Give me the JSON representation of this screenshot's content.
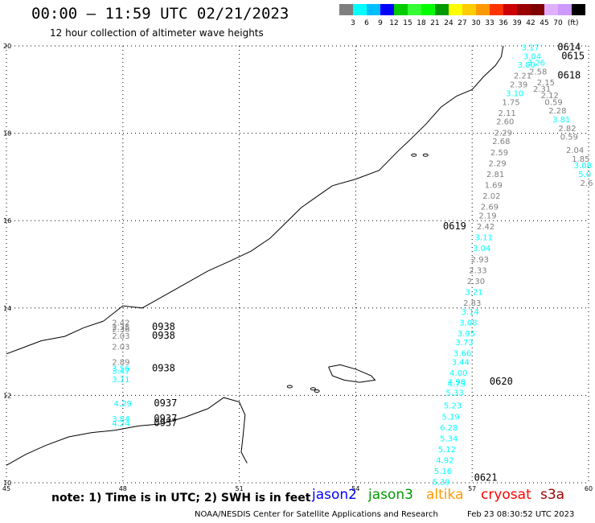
{
  "header": {
    "title": "00:00 — 11:59 UTC 02/21/2023",
    "subtitle": "12 hour collection of altimeter wave heights"
  },
  "scale": {
    "colors": [
      "#7f7f7f",
      "#00ffff",
      "#00bfff",
      "#0000ff",
      "#00cc00",
      "#33ff33",
      "#00ff00",
      "#009900",
      "#ffff00",
      "#ffcc00",
      "#ff9900",
      "#ff3300",
      "#cc0000",
      "#990000",
      "#7f0000",
      "#e0b0ff",
      "#cc99ff",
      "#000000"
    ],
    "labels": [
      "3",
      "6",
      "9",
      "12",
      "15",
      "18",
      "21",
      "24",
      "27",
      "30",
      "33",
      "36",
      "39",
      "42",
      "45",
      "70"
    ],
    "unit": "(ft)"
  },
  "axes": {
    "lon_labels": [
      "45",
      "48",
      "51",
      "54",
      "57",
      "60"
    ],
    "lat_labels": [
      "20",
      "18",
      "16",
      "14",
      "12",
      "10"
    ]
  },
  "legend": {
    "note": "note: 1) Time is in UTC; 2) SWH is in feet",
    "satellites": [
      {
        "name": "jason2",
        "color": "#0000ff"
      },
      {
        "name": "jason3",
        "color": "#009900"
      },
      {
        "name": "altika",
        "color": "#ff9900"
      },
      {
        "name": "cryosat",
        "color": "#ff0000"
      },
      {
        "name": "s3a",
        "color": "#990000"
      }
    ]
  },
  "footer": {
    "credit": "NOAA/NESDIS Center for Satellite Applications and Research",
    "timestamp": "Feb 23 08:30:52 UTC 2023"
  },
  "time_labels": [
    {
      "text": "0614",
      "color": "#009900",
      "lon": 59.2,
      "lat": 19.9
    },
    {
      "text": "0615",
      "color": "#009900",
      "lon": 59.3,
      "lat": 19.7
    },
    {
      "text": "0618",
      "color": "#990000",
      "lon": 59.2,
      "lat": 19.25
    },
    {
      "text": "0619",
      "color": "#990000",
      "lon": 56.25,
      "lat": 15.8
    },
    {
      "text": "0620",
      "color": "#990000",
      "lon": 57.45,
      "lat": 12.25
    },
    {
      "text": "0621",
      "color": "#990000",
      "lon": 57.05,
      "lat": 10.05
    },
    {
      "text": "0938",
      "color": "#ff0000",
      "lon": 48.75,
      "lat": 13.5
    },
    {
      "text": "0938",
      "color": "#ff0000",
      "lon": 48.75,
      "lat": 13.3
    },
    {
      "text": "0938",
      "color": "#ff0000",
      "lon": 48.75,
      "lat": 12.55
    },
    {
      "text": "0937",
      "color": "#ff0000",
      "lon": 48.8,
      "lat": 11.75
    },
    {
      "text": "0937",
      "color": "#ff0000",
      "lon": 48.8,
      "lat": 11.4
    },
    {
      "text": "0937",
      "color": "#ff0000",
      "lon": 48.8,
      "lat": 11.3
    }
  ],
  "wave_heights": [
    {
      "v": "3.17",
      "c": "#00ffff",
      "lon": 58.5,
      "lat": 19.9
    },
    {
      "v": "3.04",
      "c": "#00ffff",
      "lon": 58.55,
      "lat": 19.7
    },
    {
      "v": "3.26",
      "c": "#00ffff",
      "lon": 58.65,
      "lat": 19.55
    },
    {
      "v": "3.00",
      "c": "#00ffff",
      "lon": 58.4,
      "lat": 19.5
    },
    {
      "v": "2.58",
      "c": "#7f7f7f",
      "lon": 58.7,
      "lat": 19.35
    },
    {
      "v": "2.21",
      "c": "#7f7f7f",
      "lon": 58.3,
      "lat": 19.25
    },
    {
      "v": "2.15",
      "c": "#7f7f7f",
      "lon": 58.9,
      "lat": 19.1
    },
    {
      "v": "2.39",
      "c": "#7f7f7f",
      "lon": 58.2,
      "lat": 19.05
    },
    {
      "v": "2.31",
      "c": "#7f7f7f",
      "lon": 58.8,
      "lat": 18.95
    },
    {
      "v": "3.10",
      "c": "#00ffff",
      "lon": 58.1,
      "lat": 18.85
    },
    {
      "v": "2.12",
      "c": "#7f7f7f",
      "lon": 59.0,
      "lat": 18.8
    },
    {
      "v": "1.75",
      "c": "#7f7f7f",
      "lon": 58.0,
      "lat": 18.65
    },
    {
      "v": "0.59",
      "c": "#7f7f7f",
      "lon": 59.1,
      "lat": 18.65
    },
    {
      "v": "2.11",
      "c": "#7f7f7f",
      "lon": 57.9,
      "lat": 18.4
    },
    {
      "v": "2.28",
      "c": "#7f7f7f",
      "lon": 59.2,
      "lat": 18.45
    },
    {
      "v": "3.81",
      "c": "#00ffff",
      "lon": 59.3,
      "lat": 18.25
    },
    {
      "v": "2.60",
      "c": "#7f7f7f",
      "lon": 57.85,
      "lat": 18.2
    },
    {
      "v": "2.82",
      "c": "#7f7f7f",
      "lon": 59.45,
      "lat": 18.05
    },
    {
      "v": "2.29",
      "c": "#7f7f7f",
      "lon": 57.8,
      "lat": 17.95
    },
    {
      "v": "0.59",
      "c": "#7f7f7f",
      "lon": 59.5,
      "lat": 17.85
    },
    {
      "v": "2.68",
      "c": "#7f7f7f",
      "lon": 57.75,
      "lat": 17.75
    },
    {
      "v": "2.59",
      "c": "#7f7f7f",
      "lon": 57.7,
      "lat": 17.5
    },
    {
      "v": "2.04",
      "c": "#7f7f7f",
      "lon": 59.65,
      "lat": 17.55
    },
    {
      "v": "1.85",
      "c": "#7f7f7f",
      "lon": 59.8,
      "lat": 17.35
    },
    {
      "v": "2.29",
      "c": "#7f7f7f",
      "lon": 57.65,
      "lat": 17.25
    },
    {
      "v": "3.08",
      "c": "#00ffff",
      "lon": 59.85,
      "lat": 17.2
    },
    {
      "v": "2.81",
      "c": "#7f7f7f",
      "lon": 57.6,
      "lat": 17.0
    },
    {
      "v": "5.0",
      "c": "#00ffff",
      "lon": 59.9,
      "lat": 17.0
    },
    {
      "v": "1.69",
      "c": "#7f7f7f",
      "lon": 57.55,
      "lat": 16.75
    },
    {
      "v": "2.6",
      "c": "#7f7f7f",
      "lon": 59.95,
      "lat": 16.8
    },
    {
      "v": "2.02",
      "c": "#7f7f7f",
      "lon": 57.5,
      "lat": 16.5
    },
    {
      "v": "2.69",
      "c": "#7f7f7f",
      "lon": 57.45,
      "lat": 16.25
    },
    {
      "v": "2.19",
      "c": "#7f7f7f",
      "lon": 57.4,
      "lat": 16.05
    },
    {
      "v": "2.42",
      "c": "#7f7f7f",
      "lon": 57.35,
      "lat": 15.8
    },
    {
      "v": "3.11",
      "c": "#00ffff",
      "lon": 57.3,
      "lat": 15.55
    },
    {
      "v": "3.04",
      "c": "#00ffff",
      "lon": 57.25,
      "lat": 15.3
    },
    {
      "v": "2.93",
      "c": "#7f7f7f",
      "lon": 57.2,
      "lat": 15.05
    },
    {
      "v": "2.33",
      "c": "#7f7f7f",
      "lon": 57.15,
      "lat": 14.8
    },
    {
      "v": "2.30",
      "c": "#7f7f7f",
      "lon": 57.1,
      "lat": 14.55
    },
    {
      "v": "3.21",
      "c": "#00ffff",
      "lon": 57.05,
      "lat": 14.3
    },
    {
      "v": "2.83",
      "c": "#7f7f7f",
      "lon": 57.0,
      "lat": 14.05
    },
    {
      "v": "3.14",
      "c": "#00ffff",
      "lon": 56.95,
      "lat": 13.85
    },
    {
      "v": "3.08",
      "c": "#00ffff",
      "lon": 56.9,
      "lat": 13.6
    },
    {
      "v": "3.95",
      "c": "#00ffff",
      "lon": 56.85,
      "lat": 13.35
    },
    {
      "v": "3.73",
      "c": "#00ffff",
      "lon": 56.8,
      "lat": 13.15
    },
    {
      "v": "3.66",
      "c": "#00ffff",
      "lon": 56.75,
      "lat": 12.9
    },
    {
      "v": "3.44",
      "c": "#00ffff",
      "lon": 56.7,
      "lat": 12.7
    },
    {
      "v": "4.00",
      "c": "#00ffff",
      "lon": 56.65,
      "lat": 12.45
    },
    {
      "v": "4.98",
      "c": "#00ffff",
      "lon": 56.6,
      "lat": 12.25
    },
    {
      "v": "4.73",
      "c": "#00ffff",
      "lon": 56.6,
      "lat": 12.2
    },
    {
      "v": "5.33",
      "c": "#00ffff",
      "lon": 56.55,
      "lat": 12.0
    },
    {
      "v": "5.23",
      "c": "#00ffff",
      "lon": 56.5,
      "lat": 11.7
    },
    {
      "v": "5.19",
      "c": "#00ffff",
      "lon": 56.45,
      "lat": 11.45
    },
    {
      "v": "6.28",
      "c": "#00ffff",
      "lon": 56.4,
      "lat": 11.2
    },
    {
      "v": "5.34",
      "c": "#00ffff",
      "lon": 56.4,
      "lat": 10.95
    },
    {
      "v": "5.12",
      "c": "#00ffff",
      "lon": 56.35,
      "lat": 10.7
    },
    {
      "v": "4.92",
      "c": "#00ffff",
      "lon": 56.3,
      "lat": 10.45
    },
    {
      "v": "5.16",
      "c": "#00ffff",
      "lon": 56.25,
      "lat": 10.2
    },
    {
      "v": "5.39",
      "c": "#00ffff",
      "lon": 56.2,
      "lat": 9.95
    },
    {
      "v": "2.42",
      "c": "#7f7f7f",
      "lon": 47.95,
      "lat": 13.6
    },
    {
      "v": "2.35",
      "c": "#7f7f7f",
      "lon": 47.95,
      "lat": 13.5
    },
    {
      "v": "2.36",
      "c": "#7f7f7f",
      "lon": 47.95,
      "lat": 13.45
    },
    {
      "v": "2.03",
      "c": "#7f7f7f",
      "lon": 47.95,
      "lat": 13.3
    },
    {
      "v": "2.03",
      "c": "#7f7f7f",
      "lon": 47.95,
      "lat": 13.05
    },
    {
      "v": "2.89",
      "c": "#7f7f7f",
      "lon": 47.95,
      "lat": 12.7
    },
    {
      "v": "3.56",
      "c": "#00ffff",
      "lon": 47.95,
      "lat": 12.55
    },
    {
      "v": "3.47",
      "c": "#00ffff",
      "lon": 47.95,
      "lat": 12.5
    },
    {
      "v": "3.11",
      "c": "#00ffff",
      "lon": 47.95,
      "lat": 12.3
    },
    {
      "v": "4.29",
      "c": "#00ffff",
      "lon": 48.0,
      "lat": 11.75
    },
    {
      "v": "3.84",
      "c": "#00ffff",
      "lon": 47.95,
      "lat": 11.4
    },
    {
      "v": "4.24",
      "c": "#00ffff",
      "lon": 47.95,
      "lat": 11.3
    }
  ]
}
